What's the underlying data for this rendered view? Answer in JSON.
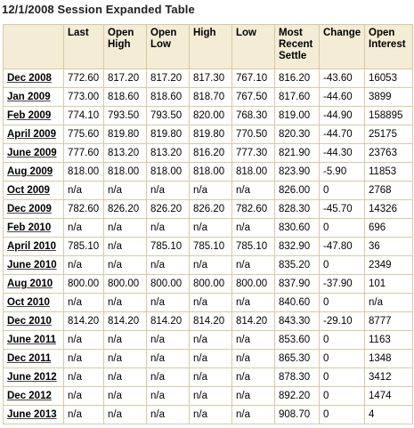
{
  "title": "12/1/2008 Session Expanded Table",
  "columns": [
    "",
    "Last",
    "Open High",
    "Open Low",
    "High",
    "Low",
    "Most Recent Settle",
    "Change",
    "Open Interest"
  ],
  "rows": [
    [
      "Dec 2008",
      "772.60",
      "817.20",
      "817.20",
      "817.30",
      "767.10",
      "816.20",
      "-43.60",
      "16053"
    ],
    [
      "Jan 2009",
      "773.00",
      "818.60",
      "818.60",
      "818.70",
      "767.50",
      "817.60",
      "-44.60",
      "3899"
    ],
    [
      "Feb 2009",
      "774.10",
      "793.50",
      "793.50",
      "820.00",
      "768.30",
      "819.00",
      "-44.90",
      "158895"
    ],
    [
      "April 2009",
      "775.60",
      "819.80",
      "819.80",
      "819.80",
      "770.50",
      "820.30",
      "-44.70",
      "25175"
    ],
    [
      "June 2009",
      "777.60",
      "813.20",
      "813.20",
      "816.20",
      "777.30",
      "821.90",
      "-44.30",
      "23763"
    ],
    [
      "Aug 2009",
      "818.00",
      "818.00",
      "818.00",
      "818.00",
      "818.00",
      "823.90",
      "-5.90",
      "11853"
    ],
    [
      "Oct 2009",
      "n/a",
      "n/a",
      "n/a",
      "n/a",
      "n/a",
      "826.00",
      "0",
      "2768"
    ],
    [
      "Dec 2009",
      "782.60",
      "826.20",
      "826.20",
      "826.20",
      "782.60",
      "828.30",
      "-45.70",
      "14326"
    ],
    [
      "Feb 2010",
      "n/a",
      "n/a",
      "n/a",
      "n/a",
      "n/a",
      "830.60",
      "0",
      "696"
    ],
    [
      "April 2010",
      "785.10",
      "n/a",
      "785.10",
      "785.10",
      "785.10",
      "832.90",
      "-47.80",
      "36"
    ],
    [
      "June 2010",
      "n/a",
      "n/a",
      "n/a",
      "n/a",
      "n/a",
      "835.20",
      "0",
      "2349"
    ],
    [
      "Aug 2010",
      "800.00",
      "800.00",
      "800.00",
      "800.00",
      "800.00",
      "837.90",
      "-37.90",
      "101"
    ],
    [
      "Oct 2010",
      "n/a",
      "n/a",
      "n/a",
      "n/a",
      "n/a",
      "840.60",
      "0",
      "n/a"
    ],
    [
      "Dec 2010",
      "814.20",
      "814.20",
      "814.20",
      "814.20",
      "814.20",
      "843.30",
      "-29.10",
      "8777"
    ],
    [
      "June 2011",
      "n/a",
      "n/a",
      "n/a",
      "n/a",
      "n/a",
      "853.60",
      "0",
      "1163"
    ],
    [
      "Dec 2011",
      "n/a",
      "n/a",
      "n/a",
      "n/a",
      "n/a",
      "865.30",
      "0",
      "1348"
    ],
    [
      "June 2012",
      "n/a",
      "n/a",
      "n/a",
      "n/a",
      "n/a",
      "878.30",
      "0",
      "3412"
    ],
    [
      "Dec 2012",
      "n/a",
      "n/a",
      "n/a",
      "n/a",
      "n/a",
      "892.20",
      "0",
      "1474"
    ],
    [
      "June 2013",
      "n/a",
      "n/a",
      "n/a",
      "n/a",
      "n/a",
      "908.70",
      "0",
      "4"
    ]
  ]
}
